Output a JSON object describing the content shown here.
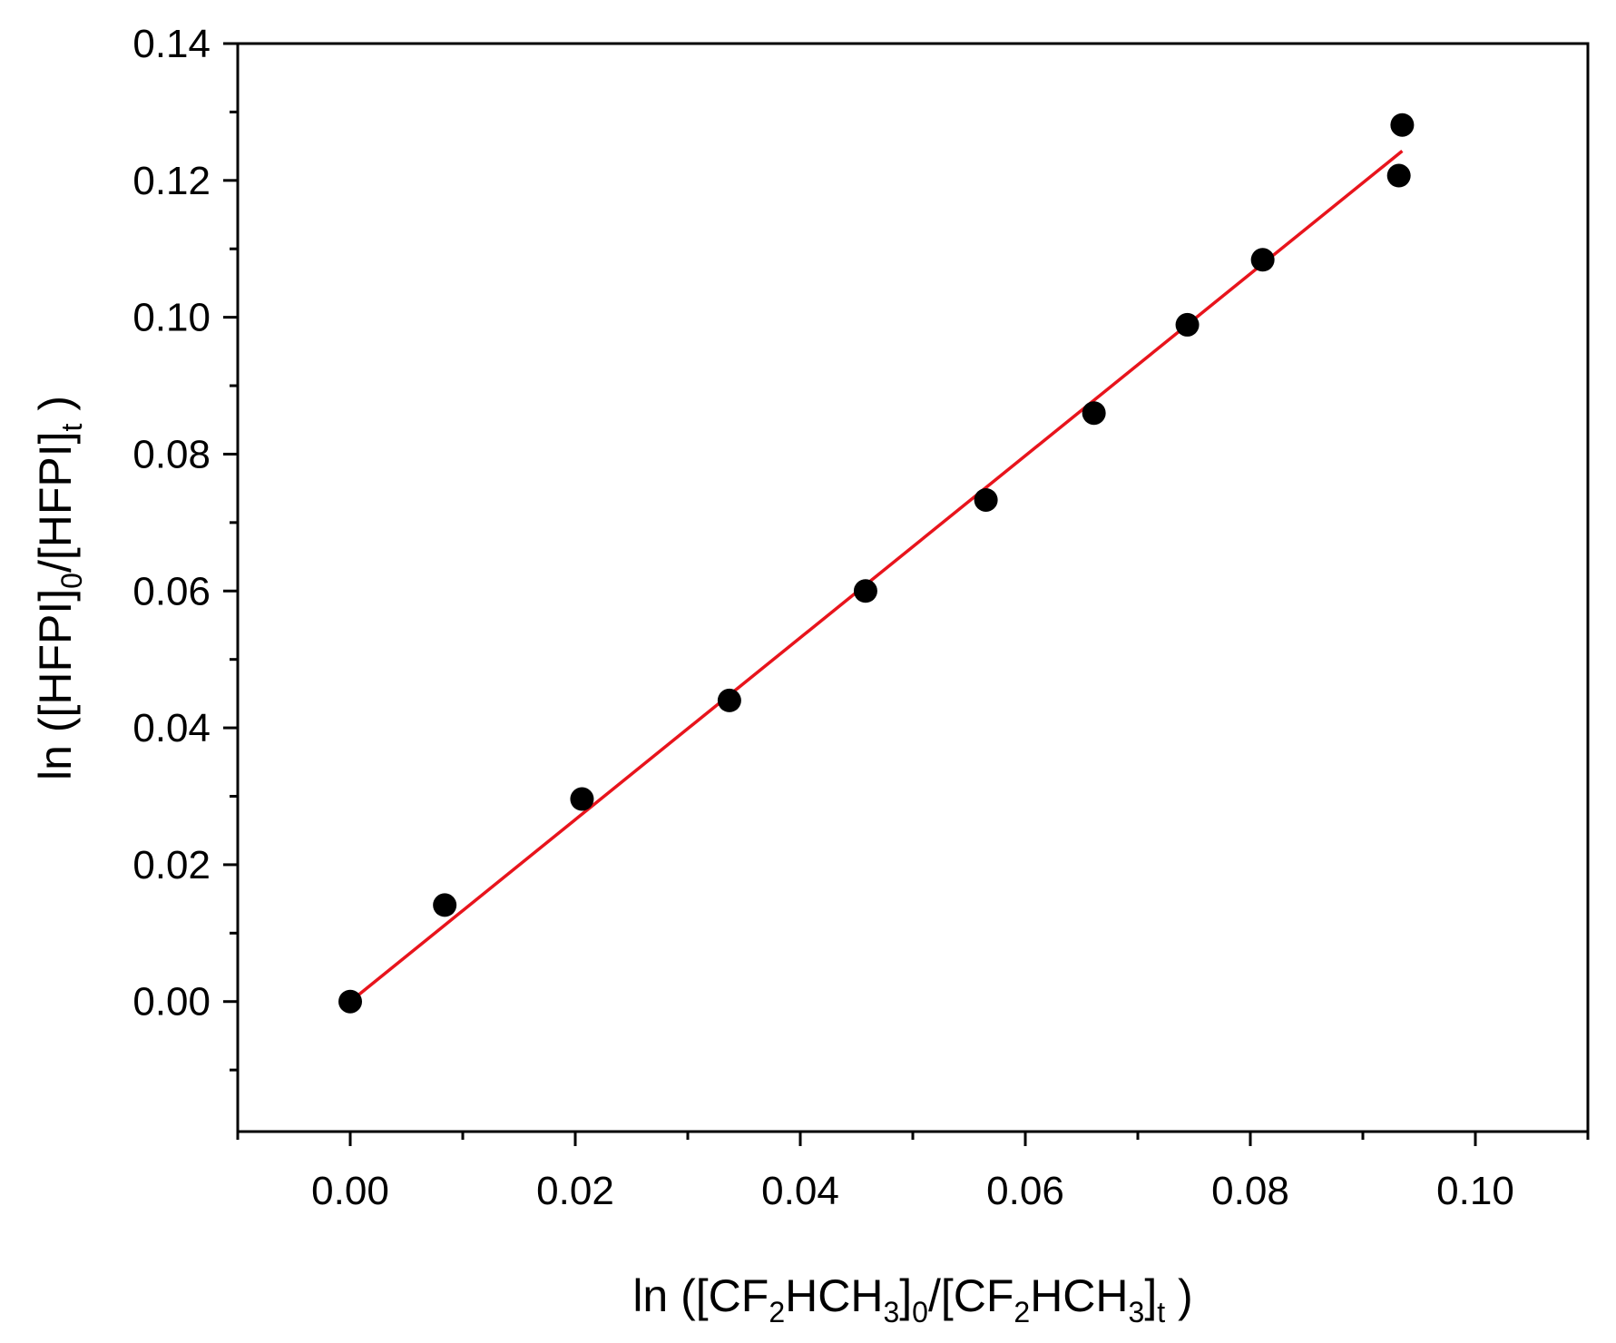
{
  "chart_data": {
    "type": "scatter",
    "title": "",
    "xlabel": {
      "parts": [
        {
          "text": "ln ([CF",
          "sub": false
        },
        {
          "text": "2",
          "sub": true
        },
        {
          "text": "HCH",
          "sub": false
        },
        {
          "text": "3",
          "sub": true
        },
        {
          "text": "]",
          "sub": false
        },
        {
          "text": "0",
          "sub": true
        },
        {
          "text": "/[CF",
          "sub": false
        },
        {
          "text": "2",
          "sub": true
        },
        {
          "text": "HCH",
          "sub": false
        },
        {
          "text": "3",
          "sub": true
        },
        {
          "text": "]",
          "sub": false
        },
        {
          "text": "t",
          "sub": true
        },
        {
          "text": " )",
          "sub": false
        }
      ]
    },
    "ylabel": {
      "parts": [
        {
          "text": "ln ([HFPI]",
          "sub": false
        },
        {
          "text": "0",
          "sub": true
        },
        {
          "text": "/[HFPI]",
          "sub": false
        },
        {
          "text": "t",
          "sub": true
        },
        {
          "text": " )",
          "sub": false
        }
      ]
    },
    "xlim": [
      -0.01,
      0.11
    ],
    "ylim": [
      -0.019,
      0.14
    ],
    "x_ticks": [
      "0.00",
      "0.02",
      "0.04",
      "0.06",
      "0.08",
      "0.10"
    ],
    "y_ticks": [
      "0.00",
      "0.02",
      "0.04",
      "0.06",
      "0.08",
      "0.10",
      "0.12",
      "0.14"
    ],
    "grid": false,
    "legend": "none",
    "series": [
      {
        "kind": "points",
        "color": "#000000",
        "x": [
          0.0,
          0.0084,
          0.0206,
          0.0337,
          0.0458,
          0.0565,
          0.0661,
          0.0744,
          0.0811,
          0.0932,
          0.0935
        ],
        "y": [
          0.0,
          0.0141,
          0.0296,
          0.044,
          0.06,
          0.0733,
          0.086,
          0.0989,
          0.1084,
          0.1207,
          0.1281
        ]
      },
      {
        "kind": "fit-line",
        "color": "#e8141c",
        "x": [
          0.0,
          0.0935
        ],
        "y": [
          0.0,
          0.1243
        ]
      }
    ]
  }
}
